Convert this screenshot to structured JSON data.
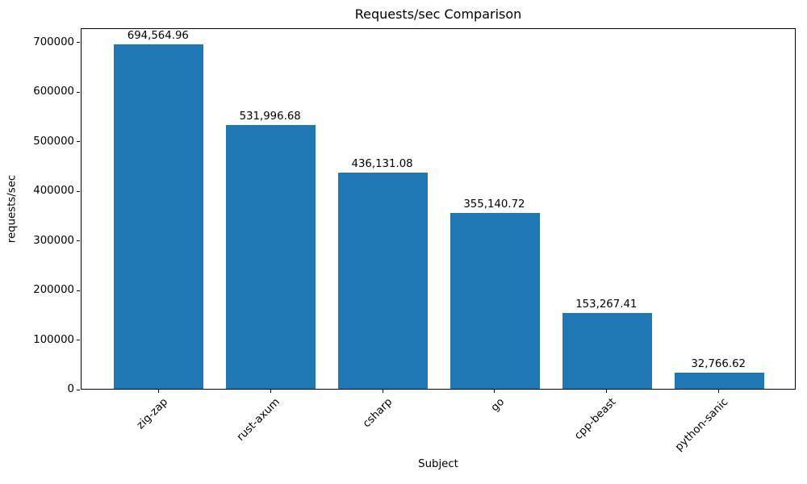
{
  "chart_data": {
    "type": "bar",
    "title": "Requests/sec Comparison",
    "xlabel": "Subject",
    "ylabel": "requests/sec",
    "categories": [
      "zig-zap",
      "rust-axum",
      "csharp",
      "go",
      "cpp-beast",
      "python-sanic"
    ],
    "values": [
      694564.96,
      531996.68,
      436131.08,
      355140.72,
      153267.41,
      32766.62
    ],
    "value_labels": [
      "694,564.96",
      "531,996.68",
      "436,131.08",
      "355,140.72",
      "153,267.41",
      "32,766.62"
    ],
    "yticks": [
      0,
      100000,
      200000,
      300000,
      400000,
      500000,
      600000,
      700000
    ],
    "ytick_labels": [
      "0",
      "100000",
      "200000",
      "300000",
      "400000",
      "500000",
      "600000",
      "700000"
    ],
    "ylim": [
      0,
      729300
    ],
    "bar_color": "#1f77b4",
    "grid": false,
    "legend": null
  }
}
